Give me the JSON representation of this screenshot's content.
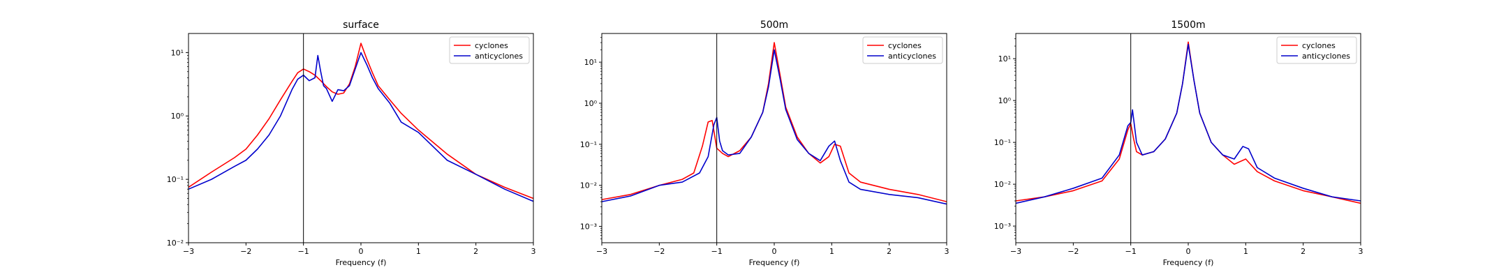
{
  "chart_data": [
    {
      "type": "line",
      "title": "surface",
      "xlabel": "Frequency (f)",
      "ylabel": "",
      "xlim": [
        -3,
        3
      ],
      "ylim": [
        0.01,
        20
      ],
      "yscale": "log",
      "xticks": [
        -3,
        -2,
        -1,
        0,
        1,
        2,
        3
      ],
      "xtick_labels": [
        "−3",
        "−2",
        "−1",
        "0",
        "1",
        "2",
        "3"
      ],
      "yticks": [
        0.01,
        0.1,
        1,
        10
      ],
      "ytick_labels": [
        "10⁻²",
        "10⁻¹",
        "10⁰",
        "10¹"
      ],
      "vline_x": -1,
      "legend": {
        "location": "top-right",
        "entries": [
          "cyclones",
          "anticyclones"
        ]
      },
      "series": [
        {
          "name": "cyclones",
          "color": "#ff0000",
          "x": [
            -3,
            -2.6,
            -2.2,
            -2.0,
            -1.8,
            -1.6,
            -1.4,
            -1.2,
            -1.1,
            -1.0,
            -0.9,
            -0.8,
            -0.7,
            -0.6,
            -0.5,
            -0.4,
            -0.3,
            -0.2,
            -0.1,
            0.0,
            0.1,
            0.2,
            0.3,
            0.5,
            0.7,
            1.0,
            1.5,
            2.0,
            2.5,
            3.0
          ],
          "values": [
            0.075,
            0.13,
            0.22,
            0.3,
            0.5,
            0.9,
            1.8,
            3.5,
            4.8,
            5.5,
            5.0,
            4.4,
            3.6,
            2.9,
            2.4,
            2.2,
            2.3,
            3.2,
            6.0,
            14.0,
            8.0,
            4.8,
            3.0,
            1.8,
            1.1,
            0.6,
            0.25,
            0.12,
            0.075,
            0.05
          ]
        },
        {
          "name": "anticyclones",
          "color": "#0000cc",
          "x": [
            -3,
            -2.6,
            -2.2,
            -2.0,
            -1.8,
            -1.6,
            -1.4,
            -1.2,
            -1.1,
            -1.0,
            -0.9,
            -0.8,
            -0.75,
            -0.7,
            -0.65,
            -0.6,
            -0.5,
            -0.45,
            -0.4,
            -0.3,
            -0.2,
            -0.1,
            0.0,
            0.1,
            0.2,
            0.3,
            0.5,
            0.7,
            1.0,
            1.5,
            2.0,
            2.5,
            3.0
          ],
          "values": [
            0.07,
            0.1,
            0.16,
            0.2,
            0.3,
            0.5,
            1.0,
            2.6,
            3.8,
            4.4,
            3.6,
            4.0,
            9.0,
            5.0,
            3.0,
            2.7,
            1.7,
            2.1,
            2.6,
            2.5,
            3.0,
            5.5,
            10.0,
            6.5,
            4.0,
            2.7,
            1.6,
            0.8,
            0.55,
            0.2,
            0.12,
            0.07,
            0.045
          ]
        }
      ]
    },
    {
      "type": "line",
      "title": "500m",
      "xlabel": "Frequency (f)",
      "ylabel": "",
      "xlim": [
        -3,
        3
      ],
      "ylim": [
        0.0004,
        50
      ],
      "yscale": "log",
      "xticks": [
        -3,
        -2,
        -1,
        0,
        1,
        2,
        3
      ],
      "xtick_labels": [
        "−3",
        "−2",
        "−1",
        "0",
        "1",
        "2",
        "3"
      ],
      "yticks": [
        0.001,
        0.01,
        0.1,
        1,
        10
      ],
      "ytick_labels": [
        "10⁻³",
        "10⁻²",
        "10⁻¹",
        "10⁰",
        "10¹"
      ],
      "vline_x": -1,
      "legend": {
        "location": "top-right",
        "entries": [
          "cyclones",
          "anticyclones"
        ]
      },
      "series": [
        {
          "name": "cyclones",
          "color": "#ff0000",
          "x": [
            -3,
            -2.5,
            -2.0,
            -1.6,
            -1.4,
            -1.25,
            -1.15,
            -1.08,
            -1.0,
            -0.9,
            -0.8,
            -0.6,
            -0.4,
            -0.2,
            -0.1,
            0.0,
            0.1,
            0.2,
            0.4,
            0.6,
            0.8,
            0.95,
            1.05,
            1.15,
            1.3,
            1.5,
            2.0,
            2.5,
            3.0
          ],
          "values": [
            0.0045,
            0.006,
            0.01,
            0.014,
            0.02,
            0.09,
            0.35,
            0.38,
            0.08,
            0.06,
            0.05,
            0.07,
            0.15,
            0.6,
            3.0,
            30.0,
            5.0,
            0.8,
            0.15,
            0.06,
            0.035,
            0.05,
            0.1,
            0.09,
            0.02,
            0.012,
            0.008,
            0.006,
            0.004
          ]
        },
        {
          "name": "anticyclones",
          "color": "#0000cc",
          "x": [
            -3,
            -2.5,
            -2.0,
            -1.6,
            -1.3,
            -1.15,
            -1.05,
            -1.0,
            -0.95,
            -0.9,
            -0.8,
            -0.6,
            -0.4,
            -0.2,
            -0.1,
            0.0,
            0.1,
            0.2,
            0.4,
            0.6,
            0.8,
            0.95,
            1.05,
            1.15,
            1.3,
            1.5,
            2.0,
            2.5,
            3.0
          ],
          "values": [
            0.004,
            0.0055,
            0.01,
            0.012,
            0.02,
            0.05,
            0.3,
            0.45,
            0.12,
            0.07,
            0.055,
            0.06,
            0.15,
            0.6,
            2.5,
            20.0,
            4.0,
            0.7,
            0.13,
            0.06,
            0.04,
            0.09,
            0.12,
            0.04,
            0.012,
            0.008,
            0.006,
            0.005,
            0.0035
          ]
        }
      ]
    },
    {
      "type": "line",
      "title": "1500m",
      "xlabel": "Frequency (f)",
      "ylabel": "",
      "xlim": [
        -3,
        3
      ],
      "ylim": [
        0.0004,
        40
      ],
      "yscale": "log",
      "xticks": [
        -3,
        -2,
        -1,
        0,
        1,
        2,
        3
      ],
      "xtick_labels": [
        "−3",
        "−2",
        "−1",
        "0",
        "1",
        "2",
        "3"
      ],
      "yticks": [
        0.001,
        0.01,
        0.1,
        1,
        10
      ],
      "ytick_labels": [
        "10⁻³",
        "10⁻²",
        "10⁻¹",
        "10⁰",
        "10¹"
      ],
      "vline_x": -1,
      "legend": {
        "location": "top-right",
        "entries": [
          "cyclones",
          "anticyclones"
        ]
      },
      "series": [
        {
          "name": "cyclones",
          "color": "#ff0000",
          "x": [
            -3,
            -2.5,
            -2.0,
            -1.5,
            -1.2,
            -1.05,
            -1.0,
            -0.95,
            -0.9,
            -0.8,
            -0.6,
            -0.4,
            -0.2,
            -0.1,
            0.0,
            0.1,
            0.2,
            0.4,
            0.6,
            0.8,
            1.0,
            1.2,
            1.5,
            2.0,
            2.5,
            3.0
          ],
          "values": [
            0.004,
            0.005,
            0.007,
            0.012,
            0.04,
            0.2,
            0.28,
            0.12,
            0.06,
            0.05,
            0.06,
            0.12,
            0.5,
            2.5,
            25.0,
            3.0,
            0.5,
            0.1,
            0.05,
            0.03,
            0.04,
            0.02,
            0.012,
            0.007,
            0.005,
            0.0035
          ]
        },
        {
          "name": "anticyclones",
          "color": "#0000cc",
          "x": [
            -3,
            -2.5,
            -2.0,
            -1.5,
            -1.2,
            -1.05,
            -1.0,
            -0.97,
            -0.9,
            -0.8,
            -0.6,
            -0.4,
            -0.2,
            -0.1,
            0.0,
            0.1,
            0.2,
            0.4,
            0.6,
            0.8,
            0.95,
            1.05,
            1.2,
            1.5,
            2.0,
            2.5,
            3.0
          ],
          "values": [
            0.0035,
            0.005,
            0.008,
            0.014,
            0.05,
            0.25,
            0.3,
            0.6,
            0.1,
            0.05,
            0.06,
            0.12,
            0.5,
            2.5,
            22.0,
            3.0,
            0.5,
            0.1,
            0.05,
            0.04,
            0.08,
            0.07,
            0.025,
            0.014,
            0.008,
            0.005,
            0.004
          ]
        }
      ]
    }
  ]
}
